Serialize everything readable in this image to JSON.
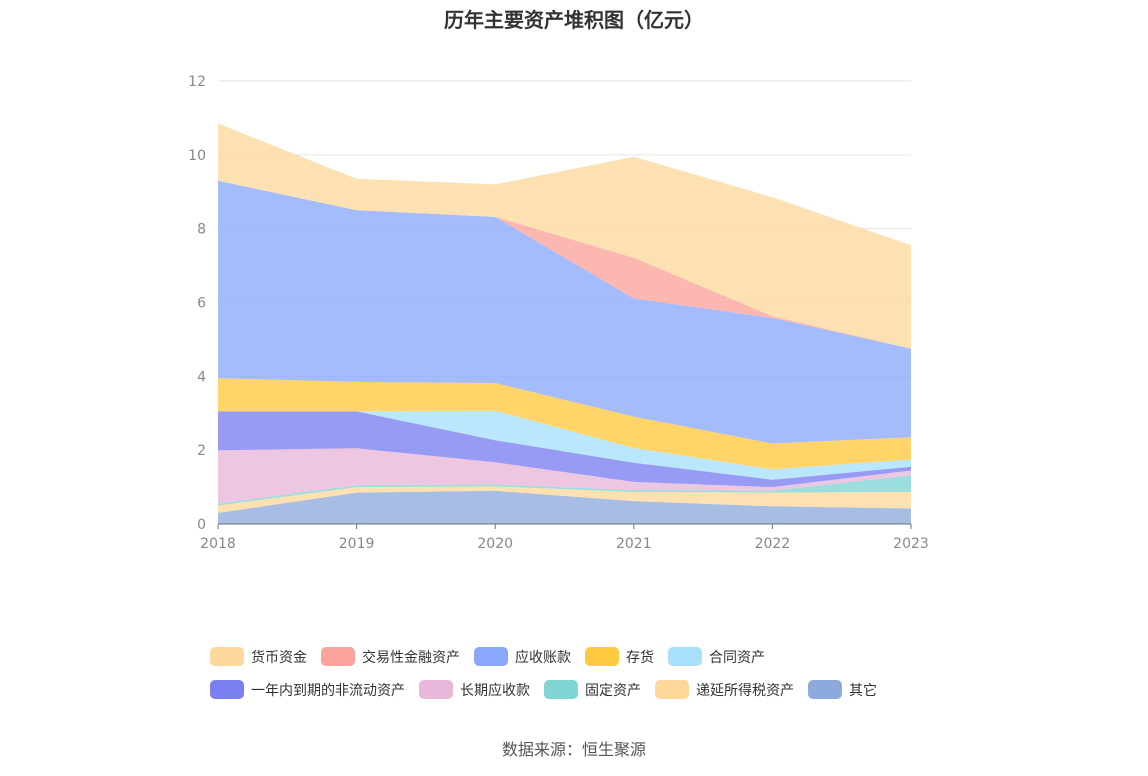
{
  "title": "历年主要资产堆积图（亿元）",
  "source": "数据来源：恒生聚源",
  "chart_data": {
    "type": "area",
    "stacked": true,
    "x": [
      "2018",
      "2019",
      "2020",
      "2021",
      "2022",
      "2023"
    ],
    "ylim": [
      0,
      12
    ],
    "yticks": [
      0,
      2,
      4,
      6,
      8,
      10,
      12
    ],
    "grid": true,
    "legend_position": "bottom",
    "series": [
      {
        "name": "其它",
        "color": "#8eaadc",
        "values": [
          0.3,
          0.85,
          0.9,
          0.62,
          0.48,
          0.42
        ]
      },
      {
        "name": "递延所得税资产",
        "color": "#fdd89a",
        "values": [
          0.2,
          0.15,
          0.12,
          0.25,
          0.37,
          0.45
        ]
      },
      {
        "name": "固定资产",
        "color": "#80d4d4",
        "values": [
          0.05,
          0.05,
          0.05,
          0.05,
          0.05,
          0.45
        ]
      },
      {
        "name": "长期应收款",
        "color": "#e8b7d9",
        "values": [
          1.45,
          1.0,
          0.6,
          0.22,
          0.1,
          0.13
        ]
      },
      {
        "name": "一年内到期的非流动资产",
        "color": "#7b7ff0",
        "values": [
          1.05,
          1.0,
          0.6,
          0.52,
          0.2,
          0.1
        ]
      },
      {
        "name": "合同资产",
        "color": "#a8e0fb",
        "values": [
          0.0,
          0.0,
          0.8,
          0.4,
          0.28,
          0.2
        ]
      },
      {
        "name": "存货",
        "color": "#ffc940",
        "values": [
          0.9,
          0.8,
          0.75,
          0.85,
          0.7,
          0.6
        ]
      },
      {
        "name": "应收账款",
        "color": "#8aa8fb",
        "values": [
          5.35,
          4.65,
          4.5,
          3.2,
          3.4,
          2.4
        ]
      },
      {
        "name": "交易性金融资产",
        "color": "#fca39b",
        "values": [
          0.0,
          0.0,
          0.0,
          1.1,
          0.05,
          0.0
        ]
      },
      {
        "name": "货币资金",
        "color": "#fed89c",
        "values": [
          1.55,
          0.85,
          0.88,
          2.74,
          3.22,
          2.8
        ]
      }
    ]
  },
  "legend_rows": [
    [
      "货币资金",
      "交易性金融资产",
      "应收账款",
      "存货",
      "合同资产"
    ],
    [
      "一年内到期的非流动资产",
      "长期应收款",
      "固定资产",
      "递延所得税资产",
      "其它"
    ]
  ]
}
